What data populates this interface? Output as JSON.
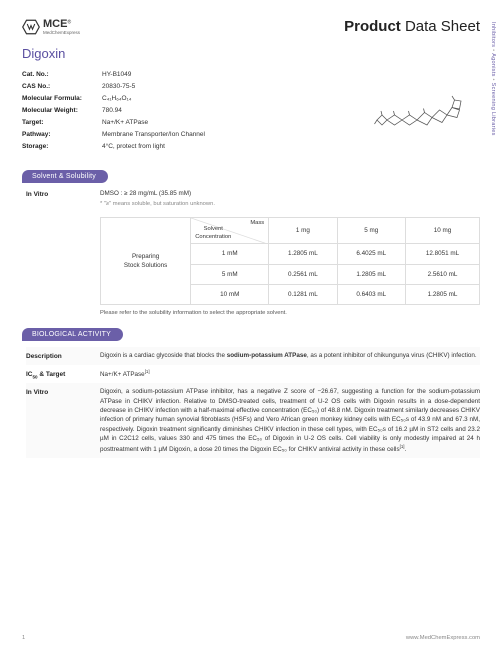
{
  "brand": {
    "name": "MCE",
    "sub": "MedChemExpress",
    "reg": "®"
  },
  "title": {
    "strong": "Product",
    "rest": " Data Sheet"
  },
  "sidebar": {
    "a": "Inhibitors",
    "b": "Agonists",
    "c": "Screening Libraries",
    "dot": "•"
  },
  "product_name": "Digoxin",
  "meta": {
    "cat_label": "Cat. No.:",
    "cat": "HY-B1049",
    "cas_label": "CAS No.:",
    "cas": "20830-75-5",
    "mf_label": "Molecular Formula:",
    "mf": "C₄₁H₆₄O₁₄",
    "mw_label": "Molecular Weight:",
    "mw": "780.94",
    "target_label": "Target:",
    "target": "Na+/K+ ATPase",
    "pathway_label": "Pathway:",
    "pathway": "Membrane Transporter/Ion Channel",
    "storage_label": "Storage:",
    "storage": "4°C, protect from light"
  },
  "solvent": {
    "badge": "Solvent & Solubility",
    "invitro_label": "In Vitro",
    "dmso": "DMSO : ≥ 28 mg/mL (35.85 mM)",
    "note": "* \"≥\" means soluble, but saturation unknown.",
    "diag_mass": "Mass",
    "diag_solvent": "Solvent",
    "diag_conc": "Concentration",
    "cols": {
      "c1": "1 mg",
      "c2": "5 mg",
      "c3": "10 mg"
    },
    "prep": "Preparing\nStock Solutions",
    "rows": [
      {
        "conc": "1 mM",
        "v1": "1.2805 mL",
        "v2": "6.4025 mL",
        "v3": "12.8051 mL"
      },
      {
        "conc": "5 mM",
        "v1": "0.2561 mL",
        "v2": "1.2805 mL",
        "v3": "2.5610 mL"
      },
      {
        "conc": "10 mM",
        "v1": "0.1281 mL",
        "v2": "0.6403 mL",
        "v3": "1.2805 mL"
      }
    ],
    "caption": "Please refer to the solubility information to select the appropriate solvent."
  },
  "bio": {
    "badge": "BIOLOGICAL ACTIVITY",
    "desc_label": "Description",
    "desc": "Digoxin is a cardiac glycoside that blocks the sodium-potassium ATPase, as a potent inhibitor of chikungunya virus (CHIKV) infection.",
    "ic50_label": "IC₅₀ & Target",
    "ic50": "Na+/K+ ATPase",
    "ic50_ref": "[1]",
    "invitro_label": "In Vitro",
    "invitro": "Digoxin, a sodium-potassium ATPase inhibitor, has a negative Z score of −26.67, suggesting a function for the sodium-potassium ATPase in CHIKV infection. Relative to DMSO-treated cells, treatment of U-2 OS cells with Digoxin results in a dose-dependent decrease in CHIKV infection with a half-maximal effective concentration (EC₅₀) of 48.8 nM. Digoxin treatment similarly decreases CHIKV infection of primary human synovial fibroblasts (HSFs) and Vero African green monkey kidney cells with EC₅₀s of 43.9 nM and 67.3 nM, respectively. Digoxin treatment significantly diminishes CHIKV infection in these cell types, with EC₅₀s of 16.2 µM in ST2 cells and 23.2 µM in C2C12 cells, values 330 and 475 times the EC₅₀ of Digoxin in U-2 OS cells. Cell viability is only modestly impaired at 24 h posttreatment with 1 µM Digoxin, a dose 20 times the Digoxin EC₅₀ for CHIKV antiviral activity in these cells",
    "invitro_ref": "[1]",
    "invitro_end": "."
  },
  "footer": {
    "page": "1",
    "url": "www.MedChemExpress.com"
  },
  "colors": {
    "purple": "#6b5fa8",
    "border": "#ddd",
    "muted": "#888"
  }
}
